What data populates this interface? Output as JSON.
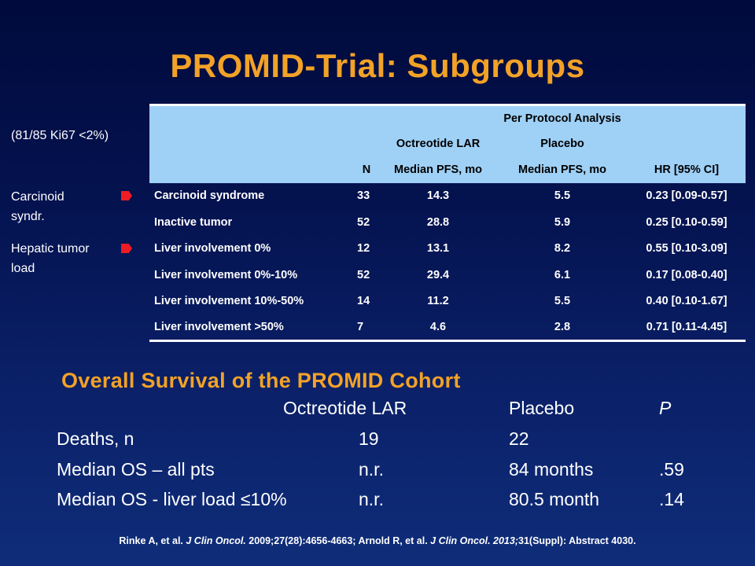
{
  "title": "PROMID-Trial: Subgroups",
  "side_notes": {
    "ki67": "(81/85 Ki67 <2%)",
    "carcinoid_line1": "Carcinoid",
    "carcinoid_line2": "syndr.",
    "hepatic_line1": "Hepatic tumor",
    "hepatic_line2": "load"
  },
  "table": {
    "analysis_header": "Per Protocol Analysis",
    "group_octreotide": "Octreotide LAR",
    "group_placebo": "Placebo",
    "col_n": "N",
    "col_octreotide": "Median PFS, mo",
    "col_placebo": "Median PFS, mo",
    "col_hr": "HR [95% CI]",
    "rows": [
      {
        "subgroup": "Carcinoid syndrome",
        "n": "33",
        "octreotide": "14.3",
        "placebo": "5.5",
        "hr": "0.23 [0.09-0.57]"
      },
      {
        "subgroup": "Inactive tumor",
        "n": "52",
        "octreotide": "28.8",
        "placebo": "5.9",
        "hr": "0.25 [0.10-0.59]"
      },
      {
        "subgroup": "Liver involvement 0%",
        "n": "12",
        "octreotide": "13.1",
        "placebo": "8.2",
        "hr": "0.55 [0.10-3.09]"
      },
      {
        "subgroup": "Liver involvement 0%-10%",
        "n": "52",
        "octreotide": "29.4",
        "placebo": "6.1",
        "hr": "0.17 [0.08-0.40]"
      },
      {
        "subgroup": "Liver involvement 10%-50%",
        "n": "14",
        "octreotide": "11.2",
        "placebo": "5.5",
        "hr": "0.40 [0.10-1.67]"
      },
      {
        "subgroup": "Liver involvement >50%",
        "n": "7",
        "octreotide": "4.6",
        "placebo": "2.8",
        "hr": "0.71 [0.11-4.45]"
      }
    ]
  },
  "os": {
    "heading": "Overall Survival of the PROMID Cohort",
    "header": {
      "octreotide": "Octreotide LAR",
      "placebo": "Placebo",
      "p": "P"
    },
    "rows": [
      {
        "label": "Deaths, n",
        "octreotide": "19",
        "placebo": "22",
        "p": ""
      },
      {
        "label": "Median OS – all pts",
        "octreotide": "n.r.",
        "placebo": "84 months",
        "p": ".59"
      },
      {
        "label": "Median OS - liver load ≤10%",
        "octreotide": "n.r.",
        "placebo": "80.5 month",
        "p": ".14"
      }
    ]
  },
  "footnote": {
    "part1": "Rinke A, et al. ",
    "journal1": "J Clin Oncol.",
    "part2": " 2009;27(28):4656-4663; Arnold R, et al. ",
    "journal2": "J Clin Oncol. 2013;",
    "part3": "31(Suppl): Abstract 4030."
  },
  "colors": {
    "title": "#f2a227",
    "table_header_bg": "#9fd0f6",
    "marker": "#ee1c24",
    "background": "#04124f"
  },
  "icons": {
    "marker": "red-arrow-marker-icon"
  }
}
